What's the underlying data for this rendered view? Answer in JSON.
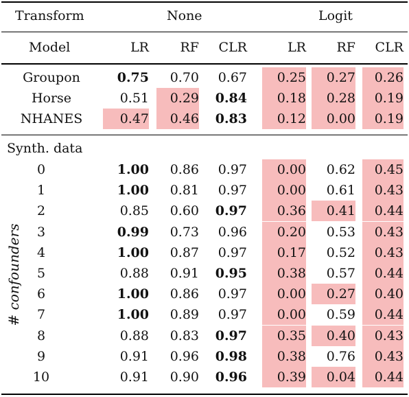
{
  "header": {
    "transform_label": "Transform",
    "group_none": "None",
    "group_logit": "Logit",
    "model_label": "Model",
    "columns": [
      "LR",
      "RF",
      "CLR",
      "LR",
      "RF",
      "CLR"
    ]
  },
  "real_rows": [
    {
      "label": "Groupon",
      "values": [
        "0.75",
        "0.70",
        "0.67",
        "0.25",
        "0.27",
        "0.26"
      ],
      "bold": [
        true,
        false,
        false,
        false,
        false,
        false
      ],
      "highlight": [
        false,
        false,
        false,
        true,
        true,
        true
      ]
    },
    {
      "label": "Horse",
      "values": [
        "0.51",
        "0.29",
        "0.84",
        "0.18",
        "0.28",
        "0.19"
      ],
      "bold": [
        false,
        false,
        true,
        false,
        false,
        false
      ],
      "highlight": [
        false,
        true,
        false,
        true,
        true,
        true
      ]
    },
    {
      "label": "NHANES",
      "values": [
        "0.47",
        "0.46",
        "0.83",
        "0.12",
        "0.00",
        "0.19"
      ],
      "bold": [
        false,
        false,
        true,
        false,
        false,
        false
      ],
      "highlight": [
        true,
        true,
        false,
        true,
        true,
        true
      ]
    }
  ],
  "synth_title": "Synth. data",
  "synth_axis_label": "# confounders",
  "synth_rows": [
    {
      "label": "0",
      "values": [
        "1.00",
        "0.86",
        "0.97",
        "0.00",
        "0.62",
        "0.45"
      ],
      "bold": [
        true,
        false,
        false,
        false,
        false,
        false
      ],
      "highlight": [
        false,
        false,
        false,
        true,
        false,
        true
      ]
    },
    {
      "label": "1",
      "values": [
        "1.00",
        "0.81",
        "0.97",
        "0.00",
        "0.61",
        "0.43"
      ],
      "bold": [
        true,
        false,
        false,
        false,
        false,
        false
      ],
      "highlight": [
        false,
        false,
        false,
        true,
        false,
        true
      ]
    },
    {
      "label": "2",
      "values": [
        "0.85",
        "0.60",
        "0.97",
        "0.36",
        "0.41",
        "0.44"
      ],
      "bold": [
        false,
        false,
        true,
        false,
        false,
        false
      ],
      "highlight": [
        false,
        false,
        false,
        true,
        true,
        true
      ]
    },
    {
      "label": "3",
      "values": [
        "0.99",
        "0.73",
        "0.96",
        "0.20",
        "0.53",
        "0.43"
      ],
      "bold": [
        true,
        false,
        false,
        false,
        false,
        false
      ],
      "highlight": [
        false,
        false,
        false,
        true,
        false,
        true
      ]
    },
    {
      "label": "4",
      "values": [
        "1.00",
        "0.87",
        "0.97",
        "0.17",
        "0.52",
        "0.43"
      ],
      "bold": [
        true,
        false,
        false,
        false,
        false,
        false
      ],
      "highlight": [
        false,
        false,
        false,
        true,
        false,
        true
      ]
    },
    {
      "label": "5",
      "values": [
        "0.88",
        "0.91",
        "0.95",
        "0.38",
        "0.57",
        "0.44"
      ],
      "bold": [
        false,
        false,
        true,
        false,
        false,
        false
      ],
      "highlight": [
        false,
        false,
        false,
        true,
        false,
        true
      ]
    },
    {
      "label": "6",
      "values": [
        "1.00",
        "0.86",
        "0.97",
        "0.00",
        "0.27",
        "0.40"
      ],
      "bold": [
        true,
        false,
        false,
        false,
        false,
        false
      ],
      "highlight": [
        false,
        false,
        false,
        true,
        true,
        true
      ]
    },
    {
      "label": "7",
      "values": [
        "1.00",
        "0.89",
        "0.97",
        "0.00",
        "0.59",
        "0.44"
      ],
      "bold": [
        true,
        false,
        false,
        false,
        false,
        false
      ],
      "highlight": [
        false,
        false,
        false,
        true,
        false,
        true
      ]
    },
    {
      "label": "8",
      "values": [
        "0.88",
        "0.83",
        "0.97",
        "0.35",
        "0.40",
        "0.43"
      ],
      "bold": [
        false,
        false,
        true,
        false,
        false,
        false
      ],
      "highlight": [
        false,
        false,
        false,
        true,
        true,
        true
      ]
    },
    {
      "label": "9",
      "values": [
        "0.91",
        "0.96",
        "0.98",
        "0.38",
        "0.76",
        "0.43"
      ],
      "bold": [
        false,
        false,
        true,
        false,
        false,
        false
      ],
      "highlight": [
        false,
        false,
        false,
        true,
        false,
        true
      ]
    },
    {
      "label": "10",
      "values": [
        "0.91",
        "0.90",
        "0.96",
        "0.39",
        "0.04",
        "0.44"
      ],
      "bold": [
        false,
        false,
        true,
        false,
        false,
        false
      ],
      "highlight": [
        false,
        false,
        false,
        true,
        true,
        true
      ]
    }
  ],
  "colors": {
    "highlight": "#f7bcbc"
  }
}
